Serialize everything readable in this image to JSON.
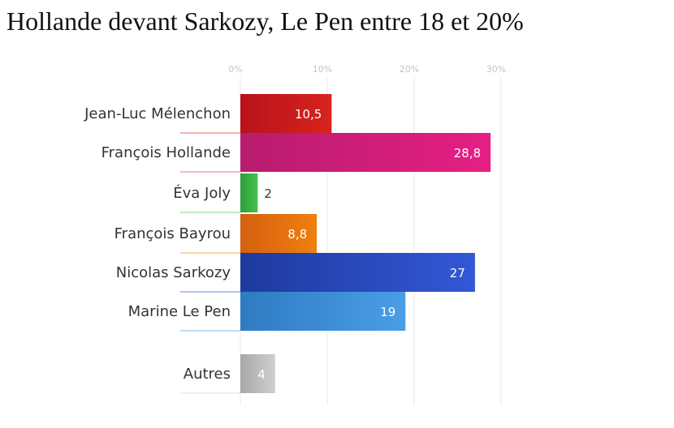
{
  "page": {
    "title": "Hollande devant Sarkozy, Le Pen entre 18 et 20%"
  },
  "chart_data": {
    "type": "bar",
    "orientation": "horizontal",
    "xlim": [
      0,
      30
    ],
    "ticks": [
      0,
      10,
      20,
      30
    ],
    "tick_labels": [
      "0%",
      "10%",
      "20%",
      "30%"
    ],
    "grid": true,
    "categories": [
      "Jean-Luc Mélenchon",
      "François Hollande",
      "Éva Joly",
      "François Bayrou",
      "Nicolas Sarkozy",
      "Marine Le Pen",
      "Autres"
    ],
    "values": [
      10.5,
      28.8,
      2,
      8.8,
      27,
      19,
      4
    ],
    "value_labels": [
      "10,5",
      "28,8",
      "2",
      "8,8",
      "27",
      "19",
      "4"
    ],
    "colors": [
      [
        "#b8121b",
        "#d8231f"
      ],
      [
        "#b81c6e",
        "#e61f84"
      ],
      [
        "#2e9e3a",
        "#46c14e"
      ],
      [
        "#d4600f",
        "#f0800f"
      ],
      [
        "#1f3a9e",
        "#3358d6"
      ],
      [
        "#2e7bc2",
        "#4a9ee6"
      ],
      [
        "#a8a8a8",
        "#cfcfcf"
      ]
    ],
    "label_colors": [
      "#ffffff",
      "#ffffff",
      "#333333",
      "#ffffff",
      "#ffffff",
      "#ffffff",
      "#ffffff"
    ]
  }
}
